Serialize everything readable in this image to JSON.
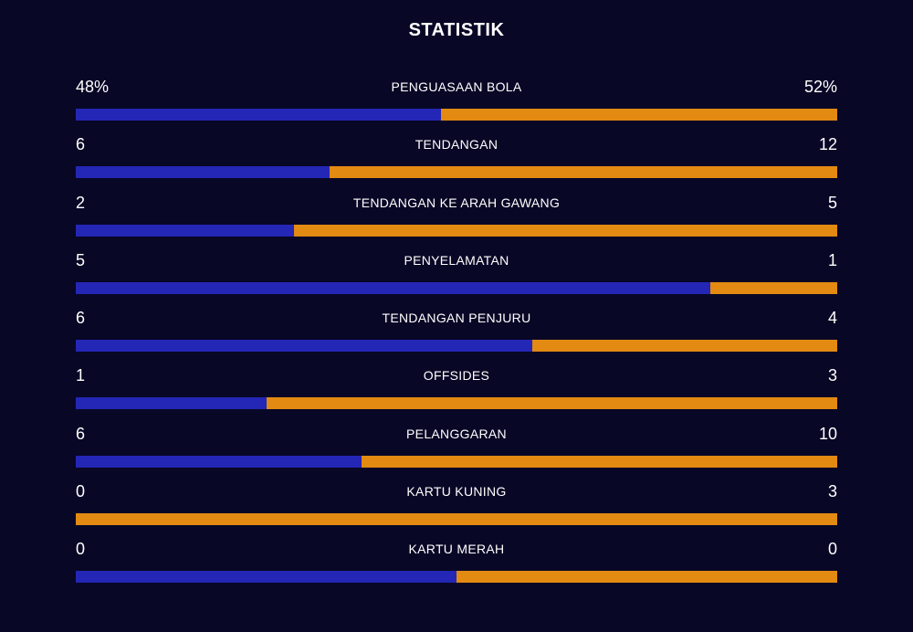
{
  "title": "STATISTIK",
  "colors": {
    "background": "#080726",
    "home_bar": "#2426b6",
    "away_bar": "#e28a12",
    "text": "#ffffff"
  },
  "stats": [
    {
      "label": "PENGUASAAN BOLA",
      "home": "48%",
      "away": "52%",
      "home_share": 0.48
    },
    {
      "label": "TENDANGAN",
      "home": "6",
      "away": "12",
      "home_share": 0.333
    },
    {
      "label": "TENDANGAN KE ARAH GAWANG",
      "home": "2",
      "away": "5",
      "home_share": 0.286
    },
    {
      "label": "PENYELAMATAN",
      "home": "5",
      "away": "1",
      "home_share": 0.833
    },
    {
      "label": "TENDANGAN PENJURU",
      "home": "6",
      "away": "4",
      "home_share": 0.6
    },
    {
      "label": "OFFSIDES",
      "home": "1",
      "away": "3",
      "home_share": 0.25
    },
    {
      "label": "PELANGGARAN",
      "home": "6",
      "away": "10",
      "home_share": 0.375
    },
    {
      "label": "KARTU KUNING",
      "home": "0",
      "away": "3",
      "home_share": 0
    },
    {
      "label": "KARTU MERAH",
      "home": "0",
      "away": "0",
      "home_share": 0.5
    }
  ]
}
